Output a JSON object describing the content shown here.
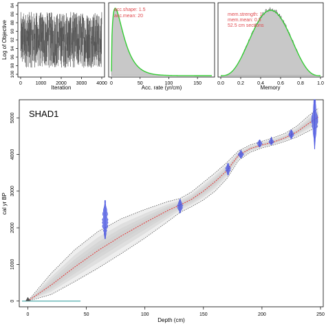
{
  "chart_data": [
    {
      "type": "line",
      "panel": "iterations",
      "xlabel": "Iteration",
      "ylabel": "Log of Objective",
      "xlim": [
        0,
        4000
      ],
      "ylim": [
        -100,
        -84
      ],
      "xticks": [
        0,
        1000,
        2000,
        3000,
        4000
      ],
      "yticks": [
        -84,
        -86,
        -88,
        -90,
        -92,
        -94,
        -96,
        -98,
        -100
      ],
      "ytick_labels": [
        "84",
        "86",
        "88",
        "90",
        "92",
        "94",
        "96",
        "98",
        "100"
      ],
      "series": [
        {
          "color": "#555555",
          "description_band": [
            -98.5,
            -85.5
          ],
          "n_points": 4000,
          "y_mean": -92
        }
      ]
    },
    {
      "type": "area",
      "panel": "acc-rate",
      "xlabel": "Acc. rate (yr/cm)",
      "xlim": [
        0,
        175
      ],
      "xticks": [
        0,
        50,
        100,
        150
      ],
      "annotations": [
        "acc.shape: 1.5",
        "acc.mean: 20"
      ],
      "posterior": {
        "mode": 8,
        "shape": "right-skewed"
      },
      "prior": {
        "shape": 1.5,
        "mean": 20
      },
      "colors": {
        "posterior_fill": "#c8c8c8",
        "prior_line": "#33cc33",
        "annotation": "#e0474c"
      }
    },
    {
      "type": "area",
      "panel": "memory",
      "xlabel": "Memory",
      "xlim": [
        0,
        1
      ],
      "xticks": [
        0.0,
        0.2,
        0.4,
        0.6,
        0.8,
        1.0
      ],
      "xtick_labels": [
        "0.0",
        "0.2",
        "0.4",
        "0.6",
        "0.8",
        "1.0"
      ],
      "annotations": [
        "mem.strength: 1",
        "mem.mean: 0.5",
        "52.5 cm sections"
      ],
      "posterior": {
        "mode": 0.5
      },
      "colors": {
        "posterior_fill": "#c8c8c8",
        "prior_line": "#33cc33",
        "annotation": "#e0474c"
      }
    },
    {
      "type": "line",
      "panel": "age-depth",
      "title": "SHAD1",
      "xlabel": "Depth (cm)",
      "ylabel": "cal yr BP",
      "xlim": [
        -5,
        250
      ],
      "ylim": [
        -100,
        5400
      ],
      "xticks": [
        0,
        50,
        100,
        150,
        200,
        250
      ],
      "yticks": [
        0,
        1000,
        2000,
        3000,
        4000,
        5000
      ],
      "median_model": {
        "depth": [
          0,
          20,
          40,
          60,
          80,
          100,
          120,
          130,
          140,
          150,
          160,
          170,
          180,
          190,
          200,
          210,
          220,
          230,
          240,
          248
        ],
        "age": [
          0,
          440,
          930,
          1380,
          1780,
          2140,
          2480,
          2620,
          2780,
          3000,
          3260,
          3560,
          3980,
          4160,
          4260,
          4340,
          4460,
          4620,
          4850,
          5020
        ]
      },
      "uncertainty_envelope": {
        "depth": [
          0,
          20,
          40,
          60,
          80,
          100,
          120,
          130,
          140,
          150,
          160,
          170,
          180,
          190,
          200,
          210,
          220,
          230,
          240,
          248
        ],
        "min": [
          0,
          180,
          530,
          900,
          1300,
          1720,
          2180,
          2420,
          2580,
          2760,
          3000,
          3340,
          3840,
          4060,
          4180,
          4260,
          4360,
          4480,
          4640,
          4760
        ],
        "max": [
          0,
          760,
          1400,
          1900,
          2250,
          2500,
          2720,
          2800,
          2980,
          3240,
          3500,
          3780,
          4100,
          4260,
          4360,
          4460,
          4580,
          4780,
          5060,
          5260
        ]
      },
      "dates": [
        {
          "depth": 66,
          "age": 2200,
          "low": 1700,
          "high": 2750,
          "spread": 0.9
        },
        {
          "depth": 130,
          "age": 2600,
          "low": 2400,
          "high": 2780,
          "spread": 0.85
        },
        {
          "depth": 171,
          "age": 3600,
          "low": 3430,
          "high": 3760,
          "spread": 0.8
        },
        {
          "depth": 182,
          "age": 4000,
          "low": 3900,
          "high": 4120,
          "spread": 0.8
        },
        {
          "depth": 198,
          "age": 4300,
          "low": 4200,
          "high": 4400,
          "spread": 0.8
        },
        {
          "depth": 208,
          "age": 4350,
          "low": 4270,
          "high": 4480,
          "spread": 0.7
        },
        {
          "depth": 225,
          "age": 4550,
          "low": 4420,
          "high": 4670,
          "spread": 0.8
        },
        {
          "depth": 245,
          "age": 4950,
          "low": 4150,
          "high": 5500,
          "spread": 0.9
        }
      ],
      "surface_line": {
        "depth": [
          -5,
          45
        ],
        "age": [
          0,
          0
        ],
        "color": "#3aa0a0"
      },
      "colors": {
        "median": "#e53030",
        "envelope": "#555555",
        "dates": "#4a55e0",
        "shade": "#cfcfcf"
      }
    }
  ]
}
